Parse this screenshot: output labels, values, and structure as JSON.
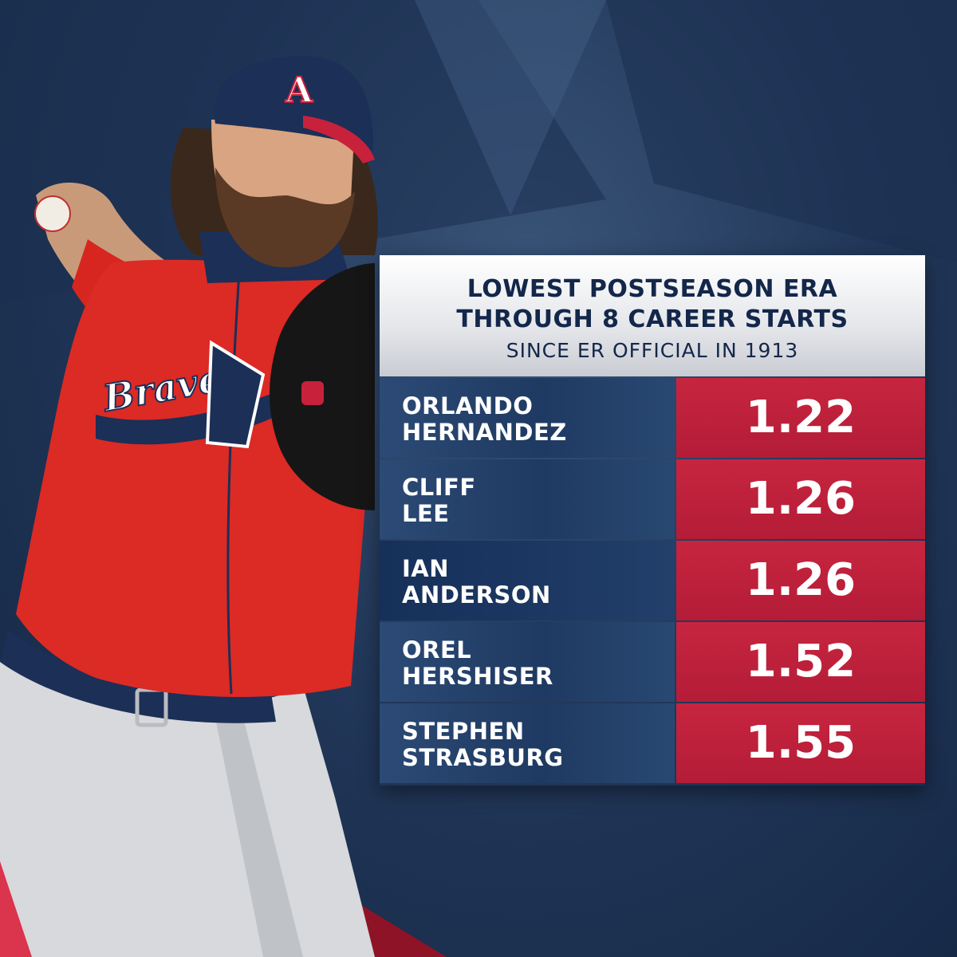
{
  "header": {
    "title_line1": "LOWEST POSTSEASON ERA",
    "title_line2": "THROUGH 8 CAREER STARTS",
    "subtitle": "SINCE ER OFFICIAL IN 1913"
  },
  "rows": [
    {
      "first": "ORLANDO",
      "last": "HERNANDEZ",
      "era": "1.22"
    },
    {
      "first": "CLIFF",
      "last": "LEE",
      "era": "1.26"
    },
    {
      "first": "IAN",
      "last": "ANDERSON",
      "era": "1.26"
    },
    {
      "first": "OREL",
      "last": "HERSHISER",
      "era": "1.52"
    },
    {
      "first": "STEPHEN",
      "last": "STRASBURG",
      "era": "1.55"
    }
  ],
  "player": {
    "cap_logo": "A",
    "jersey_script": "Braves"
  },
  "colors": {
    "navy": "#13274a",
    "red": "#c7253f",
    "white": "#ffffff"
  }
}
